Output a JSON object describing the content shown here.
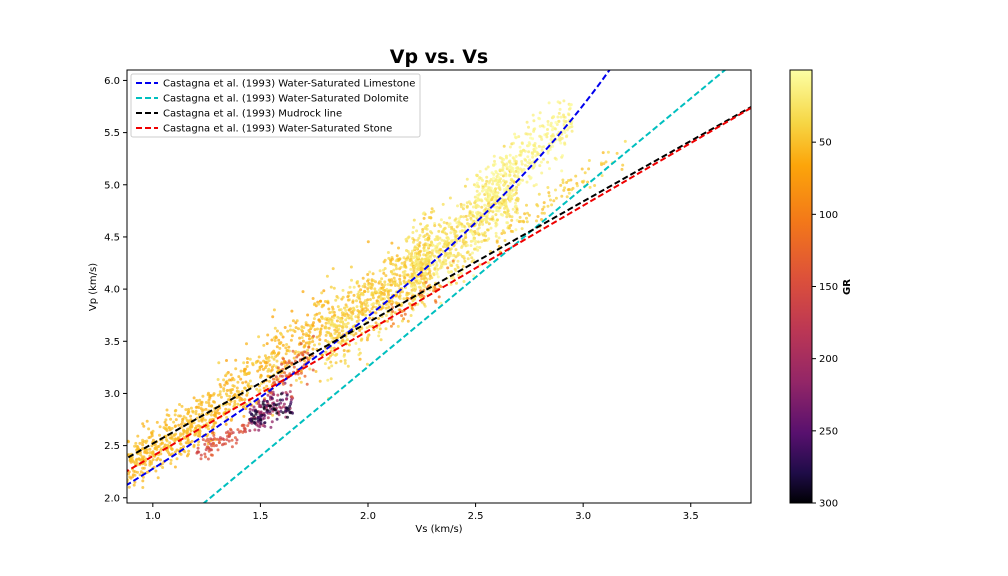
{
  "chart_data": {
    "type": "scatter",
    "title": "Vp vs. Vs",
    "xlabel": "Vs (km/s)",
    "ylabel": "Vp (km/s)",
    "xlim": [
      0.88,
      3.78
    ],
    "ylim": [
      1.95,
      6.1
    ],
    "x_ticks": [
      1.0,
      1.5,
      2.0,
      2.5,
      3.0,
      3.5
    ],
    "x_tick_labels": [
      "1.0",
      "1.5",
      "2.0",
      "2.5",
      "3.0",
      "3.5"
    ],
    "y_ticks": [
      2.0,
      2.5,
      3.0,
      3.5,
      4.0,
      4.5,
      5.0,
      5.5,
      6.0
    ],
    "y_tick_labels": [
      "2.0",
      "2.5",
      "3.0",
      "3.5",
      "4.0",
      "4.5",
      "5.0",
      "5.5",
      "6.0"
    ],
    "grid": false,
    "legend_placement": "top-left",
    "colorbar": {
      "label": "GR",
      "range": [
        0,
        300
      ],
      "inverted": true,
      "colormap": "inferno",
      "ticks": [
        50,
        100,
        150,
        200,
        250,
        300
      ],
      "tick_labels": [
        "50",
        "100",
        "150",
        "200",
        "250",
        "300"
      ]
    },
    "lines": [
      {
        "name": "Castagna et al. (1993) Water-Saturated Limestone",
        "color": "#0000ee",
        "style": "dashed",
        "model": "quadratic",
        "coef": [
          -0.05508,
          1.0168,
          -1.0305
        ]
      },
      {
        "name": "Castagna et al. (1993) Water-Saturated Dolomite",
        "color": "#00bfbf",
        "style": "dashed",
        "model": "linear",
        "coef": [
          1.714,
          -0.1716
        ]
      },
      {
        "name": "Castagna et al. (1993) Mudrock line",
        "color": "#000000",
        "style": "dashed",
        "model": "linear",
        "coef": [
          1.16,
          1.36
        ]
      },
      {
        "name": "Castagna et al. (1993) Water-Saturated Stone",
        "color": "#ee0000",
        "style": "dashed",
        "model": "linear",
        "coef": [
          1.2,
          1.2
        ]
      }
    ],
    "point_clusters": [
      {
        "x_range": [
          0.88,
          1.3
        ],
        "vp_trend": [
          1.3,
          1.15
        ],
        "spread": 0.12,
        "gr": [
          45,
          60
        ],
        "count": 420
      },
      {
        "x_range": [
          1.3,
          1.8
        ],
        "vp_trend": [
          1.5,
          0.95
        ],
        "spread": 0.18,
        "gr": [
          35,
          70
        ],
        "count": 380
      },
      {
        "x_range": [
          1.8,
          2.3
        ],
        "vp_trend": [
          1.65,
          0.55
        ],
        "spread": 0.18,
        "gr": [
          20,
          60
        ],
        "count": 700
      },
      {
        "x_range": [
          2.2,
          2.7
        ],
        "vp_trend": [
          1.75,
          0.25
        ],
        "spread": 0.18,
        "gr": [
          5,
          45
        ],
        "count": 650
      },
      {
        "x_range": [
          2.5,
          2.95
        ],
        "vp_trend": [
          1.85,
          0.2
        ],
        "spread": 0.14,
        "gr": [
          1,
          20
        ],
        "count": 350
      },
      {
        "x_range": [
          2.6,
          3.2
        ],
        "vp_trend": [
          1.35,
          1.0
        ],
        "spread": 0.08,
        "gr": [
          30,
          55
        ],
        "count": 90
      },
      {
        "x_range": [
          1.2,
          1.45
        ],
        "vp_trend": [
          1.1,
          1.1
        ],
        "spread": 0.05,
        "gr": [
          130,
          170
        ],
        "count": 80
      },
      {
        "x_range": [
          1.45,
          1.65
        ],
        "vp_trend": [
          1.0,
          1.3
        ],
        "spread": 0.08,
        "gr": [
          185,
          230
        ],
        "count": 110
      },
      {
        "x_range": [
          1.45,
          1.65
        ],
        "vp_trend": [
          0.6,
          1.9
        ],
        "spread": 0.06,
        "gr": [
          260,
          300
        ],
        "count": 70
      },
      {
        "x_range": [
          1.55,
          1.75
        ],
        "vp_trend": [
          1.0,
          1.6
        ],
        "spread": 0.1,
        "gr": [
          120,
          150
        ],
        "count": 60
      },
      {
        "x_range": [
          2.1,
          2.4
        ],
        "vp_trend": [
          1.4,
          0.8
        ],
        "spread": 0.08,
        "gr": [
          90,
          120
        ],
        "count": 40
      }
    ]
  }
}
